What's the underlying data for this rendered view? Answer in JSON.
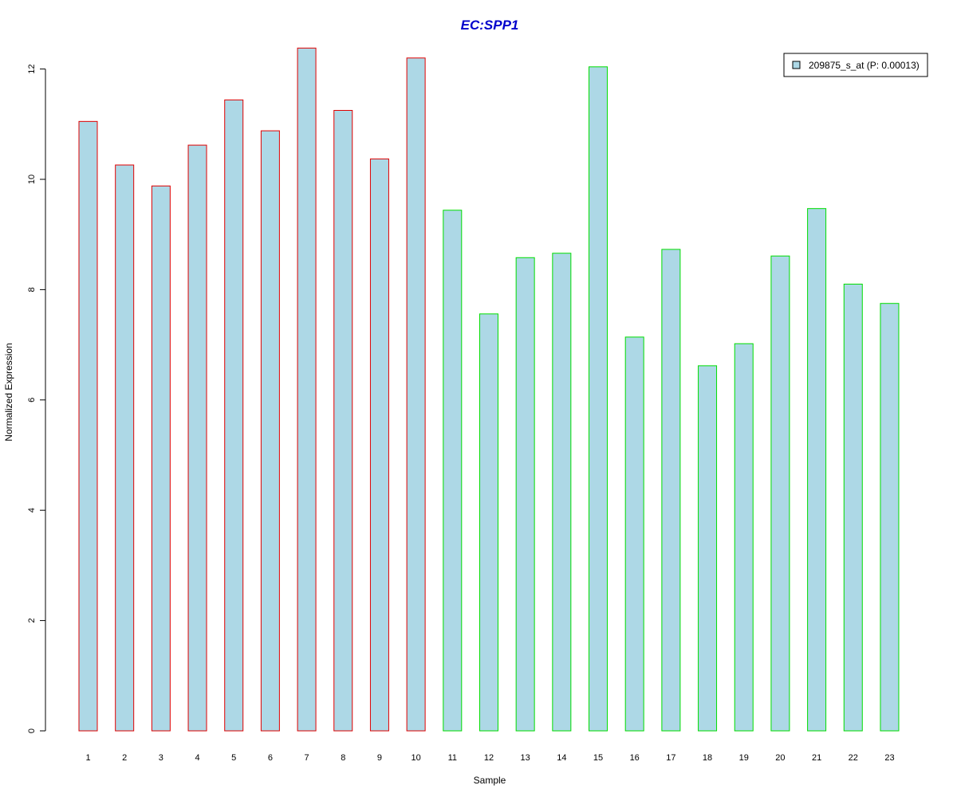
{
  "chart_data": {
    "type": "bar",
    "title": "EC:SPP1",
    "xlabel": "Sample",
    "ylabel": "Normalized Expression",
    "categories": [
      "1",
      "2",
      "3",
      "4",
      "5",
      "6",
      "7",
      "8",
      "9",
      "10",
      "11",
      "12",
      "13",
      "14",
      "15",
      "16",
      "17",
      "18",
      "19",
      "20",
      "21",
      "22",
      "23"
    ],
    "series": [
      {
        "name": "209875_s_at (P: 0.00013)",
        "values": [
          11.05,
          10.26,
          9.88,
          10.62,
          11.44,
          10.88,
          12.38,
          11.25,
          10.37,
          12.2,
          9.44,
          7.56,
          8.58,
          8.66,
          12.04,
          7.14,
          8.73,
          6.62,
          7.02,
          8.61,
          9.47,
          8.1,
          7.75
        ]
      }
    ],
    "groups": [
      {
        "from": 1,
        "to": 10,
        "border_color": "#e00000"
      },
      {
        "from": 11,
        "to": 23,
        "border_color": "#00dd00"
      }
    ],
    "ylim": [
      0,
      12.4
    ],
    "yticks": [
      0,
      2,
      4,
      6,
      8,
      10,
      12
    ],
    "grid": false,
    "legend_position": "top-right",
    "colors": {
      "bar_fill": "#add8e6",
      "title": "#0000cc",
      "axis": "#000000"
    }
  }
}
